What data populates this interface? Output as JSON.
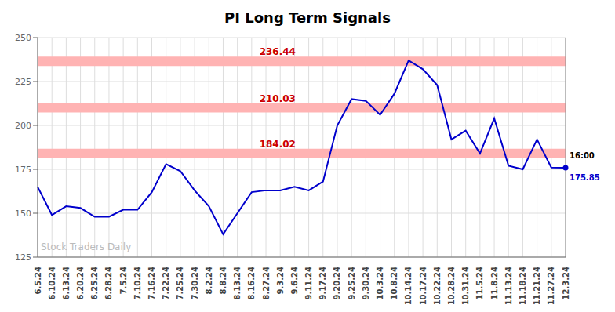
{
  "chart_data": {
    "type": "line",
    "title": "PI Long Term Signals",
    "categories": [
      "6.5.24",
      "6.10.24",
      "6.13.24",
      "6.20.24",
      "6.25.24",
      "6.28.24",
      "7.5.24",
      "7.10.24",
      "7.16.24",
      "7.22.24",
      "7.25.24",
      "7.30.24",
      "8.2.24",
      "8.8.24",
      "8.13.24",
      "8.16.24",
      "8.27.24",
      "9.3.24",
      "9.6.24",
      "9.11.24",
      "9.17.24",
      "9.20.24",
      "9.25.24",
      "9.30.24",
      "10.3.24",
      "10.8.24",
      "10.14.24",
      "10.17.24",
      "10.22.24",
      "10.28.24",
      "10.31.24",
      "11.5.24",
      "11.8.24",
      "11.13.24",
      "11.18.24",
      "11.21.24",
      "11.27.24",
      "12.3.24"
    ],
    "values": [
      165,
      149,
      154,
      153,
      148,
      148,
      152,
      152,
      162,
      178,
      174,
      163,
      154,
      138,
      150,
      162,
      163,
      163,
      165,
      163,
      168,
      200,
      215,
      214,
      206,
      218,
      237,
      232,
      223,
      192,
      197,
      184,
      204,
      177,
      175,
      192,
      176,
      175.85
    ],
    "color": "#0000cc",
    "ylim": [
      125,
      250
    ],
    "yticks": [
      125,
      150,
      175,
      200,
      225,
      250
    ],
    "grid": true,
    "reference_lines": [
      {
        "y": 184.02,
        "label": "184.02",
        "color": "#ffb3b3",
        "label_color": "#cc0000"
      },
      {
        "y": 210.03,
        "label": "210.03",
        "color": "#ffb3b3",
        "label_color": "#cc0000"
      },
      {
        "y": 236.44,
        "label": "236.44",
        "color": "#ffb3b3",
        "label_color": "#cc0000"
      }
    ],
    "annotations": [
      {
        "x": "12.3.24",
        "y": 175.85,
        "text": "16:00",
        "color": "#000000"
      },
      {
        "x": "12.3.24",
        "y": 175.85,
        "text": "175.85",
        "color": "#0000cc"
      }
    ],
    "watermark": "Stock Traders Daily"
  }
}
